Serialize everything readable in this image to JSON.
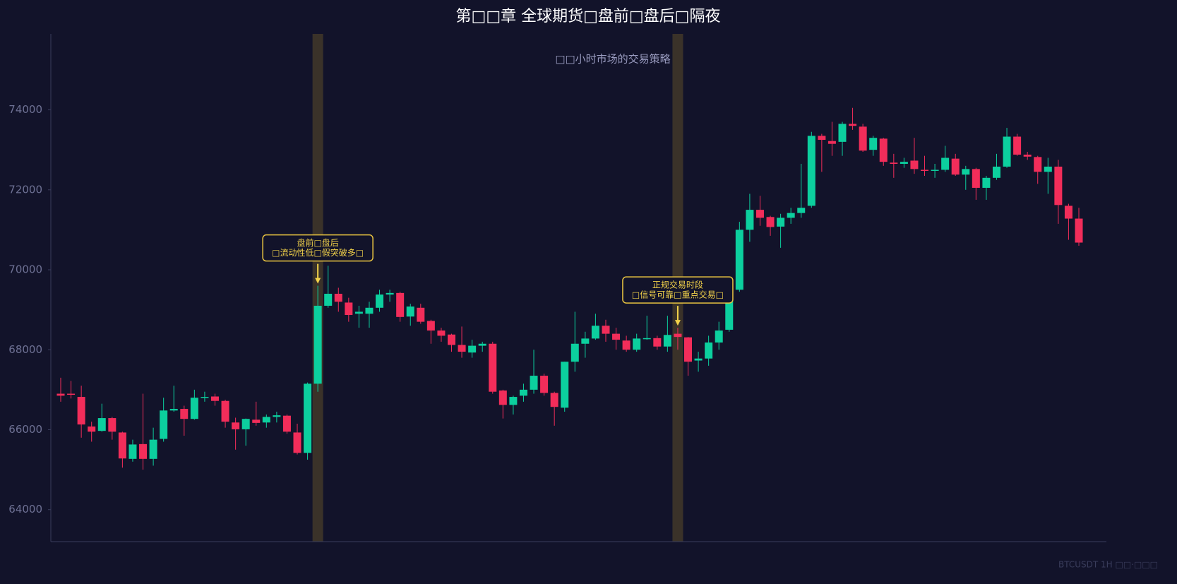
{
  "chart_data": {
    "type": "candlestick",
    "title": "第□□章 全球期货□盘前□盘后□隔夜",
    "subtitle": "□□小时市场的交易策略",
    "watermark": "BTCUSDT 1H  □□·□□□",
    "up_color": "#0ccf9e",
    "down_color": "#f22d5a",
    "highlight_color": "#3a3229",
    "ylim": [
      63200,
      75900
    ],
    "yticks": [
      64000,
      66000,
      68000,
      70000,
      72000,
      74000
    ],
    "highlights": [
      25,
      60
    ],
    "annotations": [
      {
        "index": 25,
        "text": [
          "盘前□盘后",
          "□流动性低□假突破多□"
        ]
      },
      {
        "index": 60,
        "text": [
          "正规交易时段",
          "□信号可靠□重点交易□"
        ]
      }
    ],
    "open": [
      66900,
      66900,
      66820,
      66080,
      65970,
      66290,
      65930,
      65270,
      65640,
      65270,
      65770,
      66480,
      66520,
      66270,
      66800,
      66830,
      66720,
      66180,
      66010,
      66250,
      66180,
      66320,
      66350,
      65930,
      65420,
      67150,
      69100,
      69400,
      69180,
      68900,
      68900,
      69050,
      69380,
      69420,
      68830,
      69050,
      68720,
      68480,
      68380,
      68120,
      67930,
      68100,
      68150,
      66980,
      66620,
      66850,
      67000,
      67350,
      66920,
      66550,
      67700,
      68150,
      68280,
      68600,
      68400,
      68230,
      68000,
      68270,
      68290,
      68080,
      68400,
      68310,
      67730,
      67780,
      68180,
      68500,
      69500,
      71000,
      71500,
      71320,
      71080,
      71300,
      71420,
      71600,
      73350,
      73220,
      73200,
      73650,
      73580,
      73000,
      73280,
      72680,
      72650,
      72730,
      72500,
      72480,
      72500,
      72780,
      72380,
      72520,
      72050,
      72300,
      72580,
      73330,
      72880,
      72820,
      72450,
      72580,
      71600,
      71280
    ],
    "high": [
      67300,
      67220,
      67100,
      66200,
      66650,
      66320,
      65950,
      65750,
      66900,
      66050,
      66800,
      67100,
      66600,
      67000,
      66950,
      66900,
      66750,
      66300,
      66280,
      66700,
      66380,
      66450,
      66380,
      66150,
      67180,
      69600,
      70100,
      69550,
      69300,
      69100,
      69200,
      69500,
      69500,
      69450,
      69150,
      69150,
      68750,
      68550,
      68400,
      68580,
      68250,
      68200,
      68200,
      67000,
      66850,
      67150,
      68000,
      67400,
      66950,
      67700,
      68950,
      68450,
      68900,
      68750,
      68550,
      68350,
      68400,
      68850,
      68350,
      68850,
      68550,
      68320,
      67950,
      68350,
      68700,
      69480,
      71200,
      71900,
      71850,
      71350,
      71400,
      71550,
      72650,
      73450,
      73400,
      73700,
      73700,
      74050,
      73650,
      73350,
      73300,
      72900,
      72800,
      73300,
      72850,
      72650,
      73100,
      72900,
      72600,
      72550,
      72350,
      72900,
      73550,
      73400,
      72950,
      72850,
      72800,
      72750,
      71650,
      71550
    ],
    "low": [
      66700,
      66780,
      65800,
      65700,
      65950,
      65750,
      65050,
      65200,
      65000,
      65100,
      65700,
      66450,
      65850,
      66250,
      66700,
      66600,
      66050,
      65500,
      65600,
      66100,
      66050,
      66180,
      65900,
      65380,
      65250,
      66950,
      69050,
      68950,
      68700,
      68550,
      68550,
      68950,
      69200,
      68700,
      68600,
      68650,
      68150,
      68200,
      67950,
      67800,
      67800,
      67950,
      66900,
      66280,
      66380,
      66700,
      66900,
      66850,
      66100,
      66450,
      67450,
      67800,
      68250,
      68200,
      68000,
      67950,
      67950,
      68250,
      68000,
      67950,
      68000,
      67350,
      67450,
      67600,
      68000,
      68450,
      69450,
      70700,
      71100,
      70850,
      70550,
      71150,
      71300,
      71550,
      72450,
      72850,
      72850,
      73500,
      72950,
      72850,
      72600,
      72300,
      72550,
      72400,
      72350,
      72300,
      72450,
      72350,
      72000,
      71750,
      71750,
      72250,
      72550,
      72850,
      72750,
      72150,
      71900,
      71150,
      70750,
      70600
    ],
    "close": [
      66850,
      66880,
      66130,
      65950,
      66290,
      65950,
      65280,
      65630,
      65270,
      65750,
      66480,
      66520,
      66270,
      66800,
      66820,
      66720,
      66200,
      66010,
      66270,
      66170,
      66320,
      66360,
      65950,
      65420,
      67150,
      69100,
      69400,
      69200,
      68870,
      68950,
      69050,
      69380,
      69420,
      68820,
      69080,
      68700,
      68480,
      68350,
      68120,
      67950,
      68100,
      68150,
      66950,
      66620,
      66820,
      67000,
      67350,
      66920,
      66570,
      67700,
      68150,
      68280,
      68600,
      68400,
      68250,
      68000,
      68280,
      68290,
      68080,
      68370,
      68320,
      67700,
      67780,
      68180,
      68480,
      69450,
      71000,
      71500,
      71300,
      71070,
      71300,
      71420,
      71550,
      73350,
      73250,
      73150,
      73650,
      73600,
      72980,
      73300,
      72700,
      72650,
      72700,
      72520,
      72480,
      72500,
      72800,
      72380,
      72520,
      72050,
      72300,
      72580,
      73330,
      72880,
      72830,
      72450,
      72580,
      71620,
      71280,
      70680
    ]
  }
}
